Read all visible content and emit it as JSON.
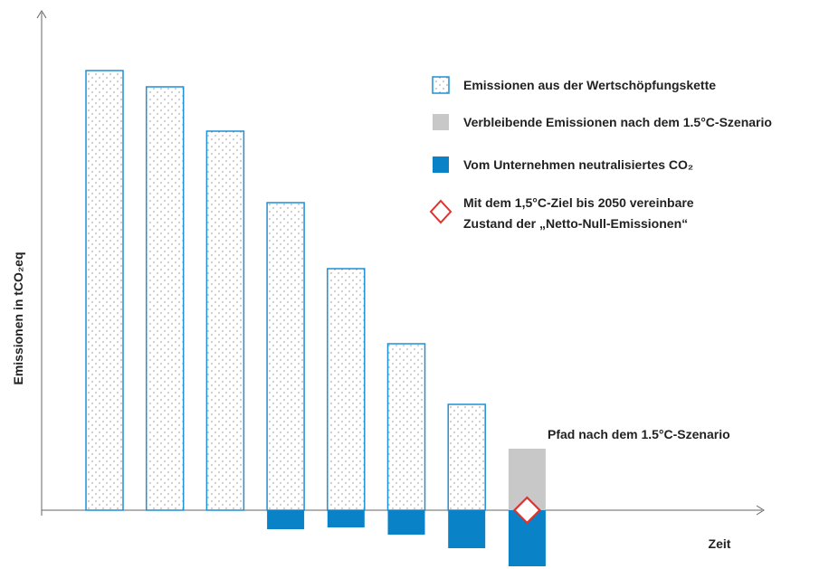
{
  "chart_data": {
    "type": "bar",
    "title": "",
    "xlabel": "Zeit",
    "ylabel": "Emissionen in tCO₂eq",
    "ylim": [
      -100,
      560
    ],
    "grid": false,
    "legend_position": "top-right",
    "categories": [
      "",
      "",
      "",
      "",
      "",
      "",
      "",
      ""
    ],
    "series": [
      {
        "name": "Emissionen aus der Wertschöpfungskette",
        "values": [
          486,
          468,
          419,
          340,
          267,
          184,
          117,
          0
        ]
      },
      {
        "name": "Verbleibende Emissionen nach dem 1.5°C-Szenario",
        "values": [
          0,
          0,
          0,
          0,
          0,
          0,
          0,
          68
        ]
      },
      {
        "name": "Vom Unternehmen neutralisiertes CO₂",
        "values": [
          0,
          0,
          0,
          -21,
          -19,
          -27,
          -42,
          -62
        ]
      }
    ],
    "net_zero_marker": {
      "label": "Mit dem 1,5°C-Ziel bis 2050 vereinbare Zustand der „Netto-Null-Emissionen“",
      "category_index": 7,
      "value": 0
    },
    "annotations": [
      {
        "text": "Pfad nach dem 1.5°C-Szenario",
        "category_index": 7
      }
    ],
    "colors": {
      "dotted_outline": "#1f8fd6",
      "dots": "#8a8a8a",
      "remaining": "#c8c8c8",
      "neutralized": "#0a82c8",
      "marker_stroke": "#e0322c",
      "axis": "#666666"
    }
  },
  "legend": {
    "items": [
      {
        "key": "dotted",
        "label": "Emissionen aus der Wertschöpfungskette"
      },
      {
        "key": "remaining",
        "label": "Verbleibende Emissionen nach dem 1.5°C-Szenario"
      },
      {
        "key": "neutralized",
        "label": "Vom Unternehmen neutralisiertes CO₂"
      },
      {
        "key": "marker",
        "line1": "Mit dem 1,5°C-Ziel bis 2050 vereinbare",
        "line2": "Zustand der „Netto-Null-Emissionen“"
      }
    ]
  }
}
